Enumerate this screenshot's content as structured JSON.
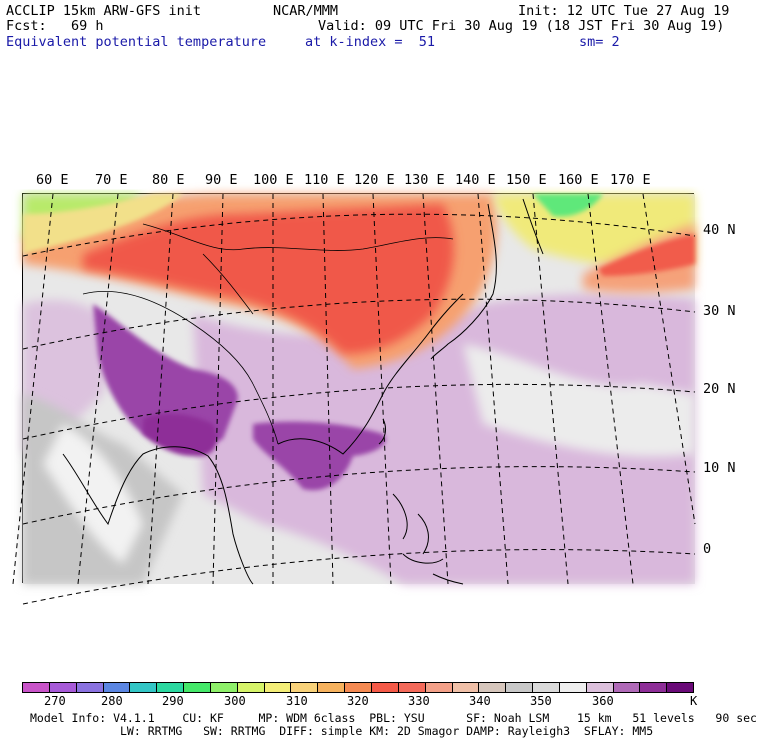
{
  "header": {
    "model": "ACCLIP 15km ARW-GFS init",
    "org": "NCAR/MMM",
    "init": "Init: 12 UTC Tue 27 Aug 19",
    "fcst": "Fcst:   69 h",
    "valid": "Valid: 09 UTC Fri 30 Aug 19 (18 JST Fri 30 Aug 19)",
    "field": "Equivalent potential temperature",
    "level": "at k-index =  51",
    "smooth": "sm= 2"
  },
  "map": {
    "lon_labels": [
      "60 E",
      "70 E",
      "80 E",
      "90 E",
      "100 E",
      "110 E",
      "120 E",
      "130 E",
      "140 E",
      "150 E",
      "160 E",
      "170 E"
    ],
    "lat_labels": [
      "40 N",
      "30 N",
      "20 N",
      "10 N",
      "0"
    ]
  },
  "colorbar": {
    "colors": [
      "#c954c9",
      "#a75ad8",
      "#8a72e0",
      "#5b86e2",
      "#33c6c6",
      "#2bd8a0",
      "#45e86a",
      "#8ef06a",
      "#d6f46a",
      "#f4ee78",
      "#f8d27a",
      "#f6b25e",
      "#f58a52",
      "#f55a48",
      "#f46a5a",
      "#f3a088",
      "#f0c0a8",
      "#d6c6bc",
      "#c8c8c8",
      "#dadada",
      "#eeeeee",
      "#dcc0dc",
      "#b06ab8",
      "#8e2e98",
      "#6a0a78"
    ],
    "ticks": [
      "270",
      "280",
      "290",
      "300",
      "310",
      "320",
      "330",
      "340",
      "350",
      "360"
    ],
    "unit": "K"
  },
  "footer": {
    "line1": "Model Info: V4.1.1    CU: KF     MP: WDM 6class  PBL: YSU      SF: Noah LSM    15 km   51 levels   90 sec",
    "line2": "             LW: RRTMG   SW: RRTMG  DIFF: simple KM: 2D Smagor DAMP: Rayleigh3  SFLAY: MM5"
  }
}
